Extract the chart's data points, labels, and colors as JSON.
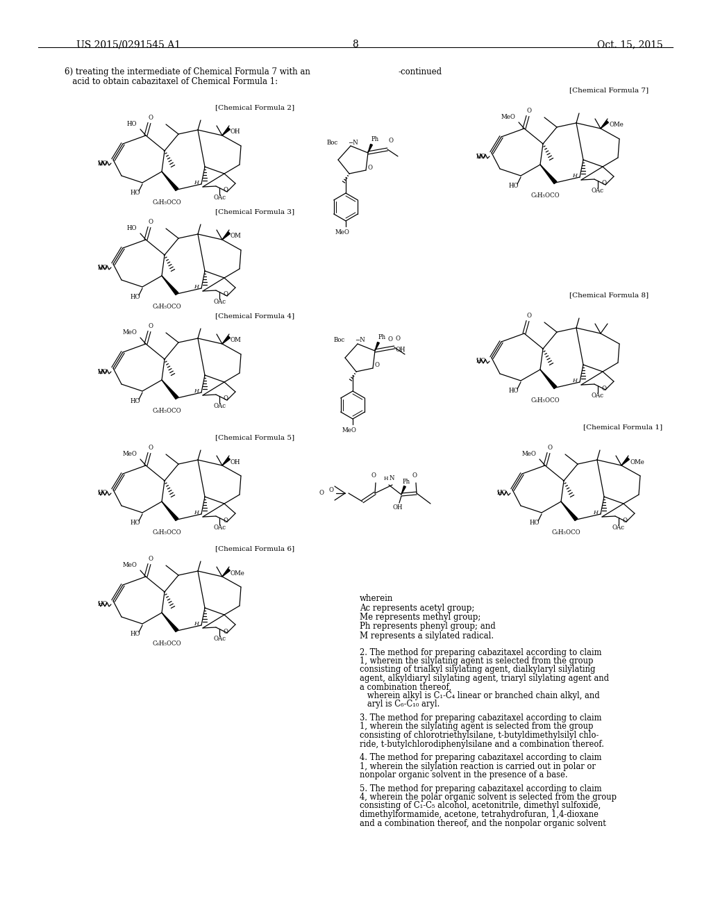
{
  "bg": "#ffffff",
  "header_left": "US 2015/0291545 A1",
  "header_right": "Oct. 15, 2015",
  "page_num": "8",
  "intro_line1": "6) treating the intermediate of Chemical Formula 7 with an",
  "intro_line2": "   acid to obtain cabazitaxel of Chemical Formula 1:",
  "continued": "-continued",
  "wherein_lines": [
    "wherein",
    "Ac represents acetyl group;",
    "Me represents methyl group;",
    "Ph represents phenyl group; and",
    "M represents a silylated radical."
  ],
  "claim2_lines": [
    "2. The method for preparing cabazitaxel according to claim",
    "1, wherein the silylating agent is selected from the group",
    "consisting of trialkyl silylating agent, dialkylaryl silylating",
    "agent, alkyldiaryl silylating agent, triaryl silylating agent and",
    "a combination thereof,",
    "   wherein alkyl is C₁-C₄ linear or branched chain alkyl, and",
    "   aryl is C₆-C₁₀ aryl."
  ],
  "claim3_lines": [
    "3. The method for preparing cabazitaxel according to claim",
    "1, wherein the silylating agent is selected from the group",
    "consisting of chlorotriethylsilane, t-butyldimethylsilyl chlo-",
    "ride, t-butylchlorodiphenylsilane and a combination thereof."
  ],
  "claim4_lines": [
    "4. The method for preparing cabazitaxel according to claim",
    "1, wherein the silylation reaction is carried out in polar or",
    "nonpolar organic solvent in the presence of a base."
  ],
  "claim5_lines": [
    "5. The method for preparing cabazitaxel according to claim",
    "4, wherein the polar organic solvent is selected from the group",
    "consisting of C₁-C₅ alcohol, acetonitrile, dimethyl sulfoxide,",
    "dimethylformamide, acetone, tetrahydrofuran, 1,4-dioxane",
    "and a combination thereof, and the nonpolar organic solvent"
  ],
  "structures": {
    "cf2": {
      "label": "[Chemical Formula 2]",
      "top_left": "HO",
      "top_right": "OH",
      "has_meo": false,
      "has_ome_right": false,
      "has_om": false
    },
    "cf3": {
      "label": "[Chemical Formula 3]",
      "top_left": "HO",
      "top_right": "OM",
      "has_meo": false,
      "has_ome_right": false,
      "has_om": true
    },
    "cf4": {
      "label": "[Chemical Formula 4]",
      "top_left": "MeO",
      "top_right": "OM",
      "has_meo": true,
      "has_ome_right": false,
      "has_om": true
    },
    "cf5": {
      "label": "[Chemical Formula 5]",
      "top_left": "MeO",
      "top_right": "OH",
      "has_meo": true,
      "has_ome_right": false,
      "has_om": false
    },
    "cf6": {
      "label": "[Chemical Formula 6]",
      "top_left": "MeO",
      "top_right": "OMe",
      "has_meo": true,
      "has_ome_right": true,
      "has_om": false
    },
    "cf7": {
      "label": "[Chemical Formula 7]",
      "top_left": "MeO",
      "top_right": "OMe",
      "has_meo": true,
      "has_ome_right": true,
      "has_om": false
    },
    "cf8": {
      "label": "[Chemical Formula 8]",
      "top_left": null,
      "top_right": null,
      "has_meo": false,
      "has_ome_right": false,
      "has_om": false
    },
    "cf1": {
      "label": "[Chemical Formula 1]",
      "top_left": "MeO",
      "top_right": "OMe",
      "has_meo": true,
      "has_ome_right": true,
      "has_om": false
    }
  }
}
